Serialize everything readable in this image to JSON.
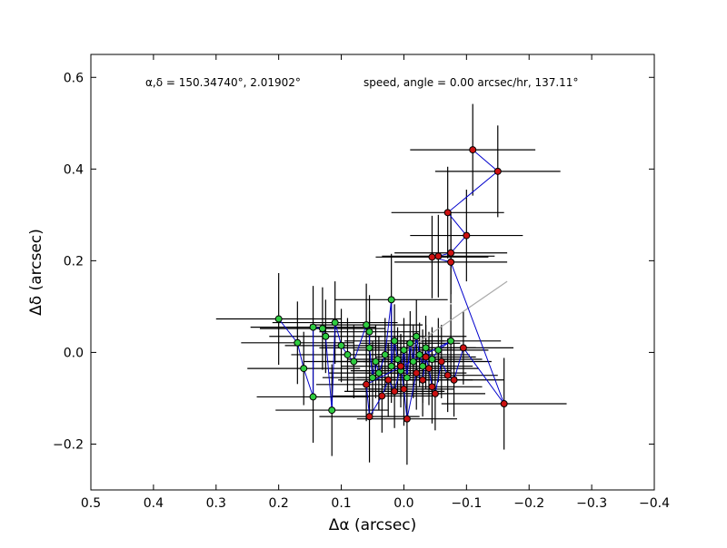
{
  "chart_data": {
    "type": "scatter",
    "title": "",
    "xlabel": "Δα (arcsec)",
    "ylabel": "Δδ (arcsec)",
    "xlim": [
      0.5,
      -0.4
    ],
    "ylim": [
      -0.3,
      0.65
    ],
    "x_ticks": [
      0.5,
      0.4,
      0.3,
      0.2,
      0.1,
      0.0,
      -0.1,
      -0.2,
      -0.3,
      -0.4
    ],
    "x_tick_labels": [
      "0.5",
      "0.4",
      "0.3",
      "0.2",
      "0.1",
      "0.0",
      "−0.1",
      "−0.2",
      "−0.3",
      "−0.4"
    ],
    "y_ticks": [
      -0.2,
      0.0,
      0.2,
      0.4,
      0.6
    ],
    "y_tick_labels": [
      "−0.2",
      "0.0",
      "0.2",
      "0.4",
      "0.6"
    ],
    "grid": false,
    "annotations": {
      "left": "α,δ = 150.34740°, 2.01902°",
      "right": "speed, angle = 0.00 arcsec/hr, 137.11°"
    },
    "colors": {
      "green_points": "#2ecc40",
      "red_points": "#cc1111",
      "track_line": "#0000cc",
      "error_bars": "#000000",
      "direction_line": "#aaaaaa"
    },
    "direction_line": {
      "x": [
        0.0,
        -0.165
      ],
      "y": [
        0.0,
        0.155
      ]
    },
    "green_points": [
      {
        "x": 0.2,
        "y": 0.073,
        "xerr": 0.1,
        "yerr": 0.1
      },
      {
        "x": 0.17,
        "y": 0.021,
        "xerr": 0.09,
        "yerr": 0.09
      },
      {
        "x": 0.16,
        "y": -0.035,
        "xerr": 0.09,
        "yerr": 0.08
      },
      {
        "x": 0.145,
        "y": -0.097,
        "xerr": 0.09,
        "yerr": 0.1
      },
      {
        "x": 0.145,
        "y": 0.055,
        "xerr": 0.1,
        "yerr": 0.09
      },
      {
        "x": 0.13,
        "y": 0.052,
        "xerr": 0.1,
        "yerr": 0.09
      },
      {
        "x": 0.125,
        "y": 0.035,
        "xerr": 0.09,
        "yerr": 0.08
      },
      {
        "x": 0.115,
        "y": -0.126,
        "xerr": 0.09,
        "yerr": 0.1
      },
      {
        "x": 0.11,
        "y": 0.065,
        "xerr": 0.1,
        "yerr": 0.09
      },
      {
        "x": 0.1,
        "y": 0.015,
        "xerr": 0.09,
        "yerr": 0.08
      },
      {
        "x": 0.09,
        "y": -0.005,
        "xerr": 0.09,
        "yerr": 0.08
      },
      {
        "x": 0.08,
        "y": -0.02,
        "xerr": 0.08,
        "yerr": 0.08
      },
      {
        "x": 0.06,
        "y": 0.06,
        "xerr": 0.09,
        "yerr": 0.09
      },
      {
        "x": 0.055,
        "y": 0.045,
        "xerr": 0.08,
        "yerr": 0.08
      },
      {
        "x": 0.055,
        "y": 0.01,
        "xerr": 0.08,
        "yerr": 0.08
      },
      {
        "x": 0.05,
        "y": -0.055,
        "xerr": 0.08,
        "yerr": 0.08
      },
      {
        "x": 0.045,
        "y": -0.02,
        "xerr": 0.08,
        "yerr": 0.08
      },
      {
        "x": 0.04,
        "y": -0.045,
        "xerr": 0.08,
        "yerr": 0.08
      },
      {
        "x": 0.03,
        "y": -0.005,
        "xerr": 0.08,
        "yerr": 0.08
      },
      {
        "x": 0.02,
        "y": 0.115,
        "xerr": 0.09,
        "yerr": 0.1
      },
      {
        "x": 0.02,
        "y": -0.03,
        "xerr": 0.08,
        "yerr": 0.08
      },
      {
        "x": 0.015,
        "y": 0.025,
        "xerr": 0.08,
        "yerr": 0.08
      },
      {
        "x": 0.01,
        "y": -0.015,
        "xerr": 0.08,
        "yerr": 0.07
      },
      {
        "x": 0.005,
        "y": -0.04,
        "xerr": 0.08,
        "yerr": 0.08
      },
      {
        "x": 0.0,
        "y": 0.005,
        "xerr": 0.08,
        "yerr": 0.07
      },
      {
        "x": -0.005,
        "y": -0.055,
        "xerr": 0.08,
        "yerr": 0.08
      },
      {
        "x": -0.01,
        "y": 0.02,
        "xerr": 0.08,
        "yerr": 0.07
      },
      {
        "x": -0.015,
        "y": -0.02,
        "xerr": 0.08,
        "yerr": 0.08
      },
      {
        "x": -0.02,
        "y": 0.035,
        "xerr": 0.08,
        "yerr": 0.08
      },
      {
        "x": -0.025,
        "y": -0.005,
        "xerr": 0.08,
        "yerr": 0.07
      },
      {
        "x": -0.03,
        "y": -0.03,
        "xerr": 0.08,
        "yerr": 0.08
      },
      {
        "x": -0.035,
        "y": 0.01,
        "xerr": 0.08,
        "yerr": 0.07
      },
      {
        "x": -0.045,
        "y": -0.015,
        "xerr": 0.08,
        "yerr": 0.07
      },
      {
        "x": -0.055,
        "y": 0.005,
        "xerr": 0.08,
        "yerr": 0.07
      },
      {
        "x": -0.075,
        "y": 0.025,
        "xerr": 0.08,
        "yerr": 0.08
      }
    ],
    "red_points": [
      {
        "x": -0.11,
        "y": 0.442,
        "xerr": 0.1,
        "yerr": 0.1
      },
      {
        "x": -0.15,
        "y": 0.395,
        "xerr": 0.1,
        "yerr": 0.1
      },
      {
        "x": -0.07,
        "y": 0.305,
        "xerr": 0.09,
        "yerr": 0.1
      },
      {
        "x": -0.1,
        "y": 0.255,
        "xerr": 0.09,
        "yerr": 0.1
      },
      {
        "x": -0.075,
        "y": 0.217,
        "xerr": 0.09,
        "yerr": 0.09
      },
      {
        "x": -0.055,
        "y": 0.21,
        "xerr": 0.09,
        "yerr": 0.09
      },
      {
        "x": -0.045,
        "y": 0.208,
        "xerr": 0.09,
        "yerr": 0.09
      },
      {
        "x": -0.075,
        "y": 0.197,
        "xerr": 0.09,
        "yerr": 0.09
      },
      {
        "x": -0.16,
        "y": -0.112,
        "xerr": 0.1,
        "yerr": 0.1
      },
      {
        "x": -0.095,
        "y": 0.01,
        "xerr": 0.08,
        "yerr": 0.08
      },
      {
        "x": -0.08,
        "y": -0.06,
        "xerr": 0.08,
        "yerr": 0.08
      },
      {
        "x": -0.07,
        "y": -0.05,
        "xerr": 0.08,
        "yerr": 0.08
      },
      {
        "x": -0.06,
        "y": -0.02,
        "xerr": 0.08,
        "yerr": 0.08
      },
      {
        "x": -0.05,
        "y": -0.09,
        "xerr": 0.08,
        "yerr": 0.08
      },
      {
        "x": -0.045,
        "y": -0.075,
        "xerr": 0.08,
        "yerr": 0.08
      },
      {
        "x": -0.04,
        "y": -0.035,
        "xerr": 0.08,
        "yerr": 0.08
      },
      {
        "x": -0.035,
        "y": -0.01,
        "xerr": 0.08,
        "yerr": 0.07
      },
      {
        "x": -0.03,
        "y": -0.06,
        "xerr": 0.08,
        "yerr": 0.08
      },
      {
        "x": -0.02,
        "y": -0.045,
        "xerr": 0.08,
        "yerr": 0.08
      },
      {
        "x": -0.005,
        "y": -0.145,
        "xerr": 0.08,
        "yerr": 0.1
      },
      {
        "x": 0.0,
        "y": -0.08,
        "xerr": 0.08,
        "yerr": 0.08
      },
      {
        "x": 0.005,
        "y": -0.03,
        "xerr": 0.08,
        "yerr": 0.07
      },
      {
        "x": 0.015,
        "y": -0.085,
        "xerr": 0.08,
        "yerr": 0.08
      },
      {
        "x": 0.025,
        "y": -0.06,
        "xerr": 0.08,
        "yerr": 0.08
      },
      {
        "x": 0.035,
        "y": -0.095,
        "xerr": 0.08,
        "yerr": 0.08
      },
      {
        "x": 0.055,
        "y": -0.14,
        "xerr": 0.08,
        "yerr": 0.1
      },
      {
        "x": 0.06,
        "y": -0.07,
        "xerr": 0.08,
        "yerr": 0.08
      }
    ]
  }
}
